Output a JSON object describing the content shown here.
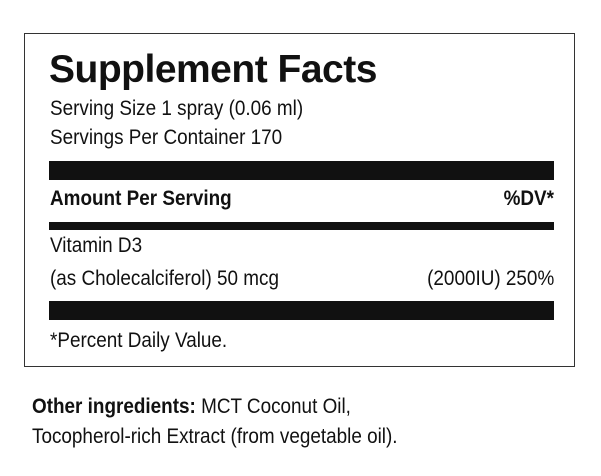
{
  "label": {
    "title": "Supplement Facts",
    "serving_size": "Serving Size 1 spray (0.06 ml)",
    "servings_per_container": "Servings Per Container 170",
    "amount_header": "Amount Per Serving",
    "dv_header": "%DV*",
    "nutrient_name": "Vitamin D3",
    "nutrient_detail": "(as Cholecalciferol) 50 mcg",
    "nutrient_iu_dv": "(2000IU) 250%",
    "footnote": "*Percent Daily Value."
  },
  "other": {
    "label": "Other ingredients:",
    "text_line1": " MCT Coconut Oil,",
    "text_line2": "Tocopherol-rich Extract (from vegetable oil)."
  }
}
